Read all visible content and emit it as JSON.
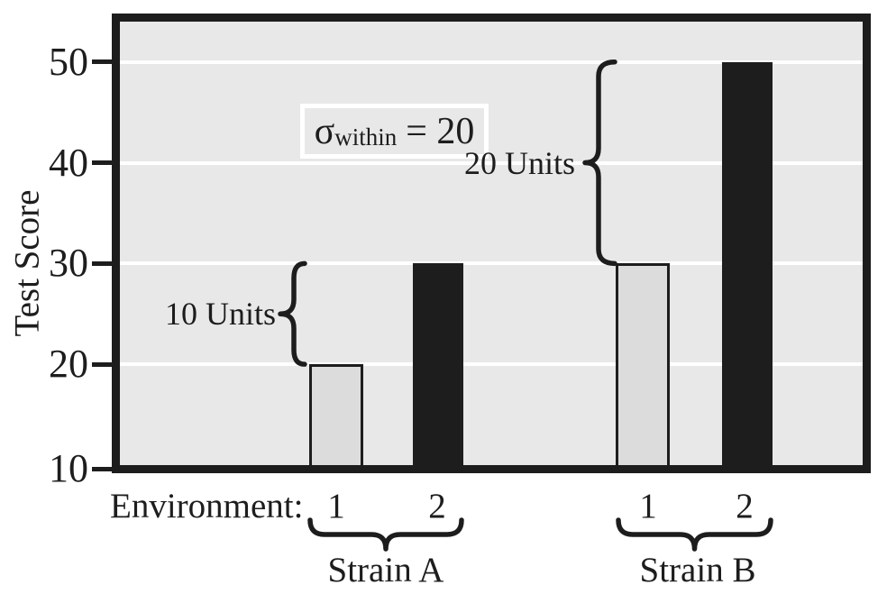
{
  "colors": {
    "canvas": "#ffffff",
    "ink": "#1d1d1d",
    "plot_background": "#e8e8e8",
    "gridline": "#ffffff",
    "light_bar_fill": "#dcdcdc"
  },
  "chart_data": {
    "type": "bar",
    "title": "",
    "ylabel": "Test Score",
    "xlabel": "Environment:",
    "ylim": [
      10,
      54
    ],
    "yticks": [
      10,
      20,
      30,
      40,
      50
    ],
    "grid": "horizontal white gridlines at yticks",
    "x_categories": [
      "1",
      "2",
      "1",
      "2"
    ],
    "groups": [
      {
        "label": "Strain A",
        "bars": [
          {
            "environment": "1",
            "value": 20,
            "style": "light"
          },
          {
            "environment": "2",
            "value": 30,
            "style": "dark"
          }
        ]
      },
      {
        "label": "Strain B",
        "bars": [
          {
            "environment": "1",
            "value": 30,
            "style": "light"
          },
          {
            "environment": "2",
            "value": 50,
            "style": "dark"
          }
        ]
      }
    ],
    "annotations": {
      "sigma_box": {
        "symbol": "σ",
        "subscript": "within",
        "equals_value": "= 20",
        "text": "σwithin = 20"
      },
      "difference_braces": [
        {
          "label": "10 Units",
          "from_value": 20,
          "to_value": 30,
          "group": "Strain A"
        },
        {
          "label": "20 Units",
          "from_value": 30,
          "to_value": 50,
          "group": "Strain B"
        }
      ]
    }
  }
}
